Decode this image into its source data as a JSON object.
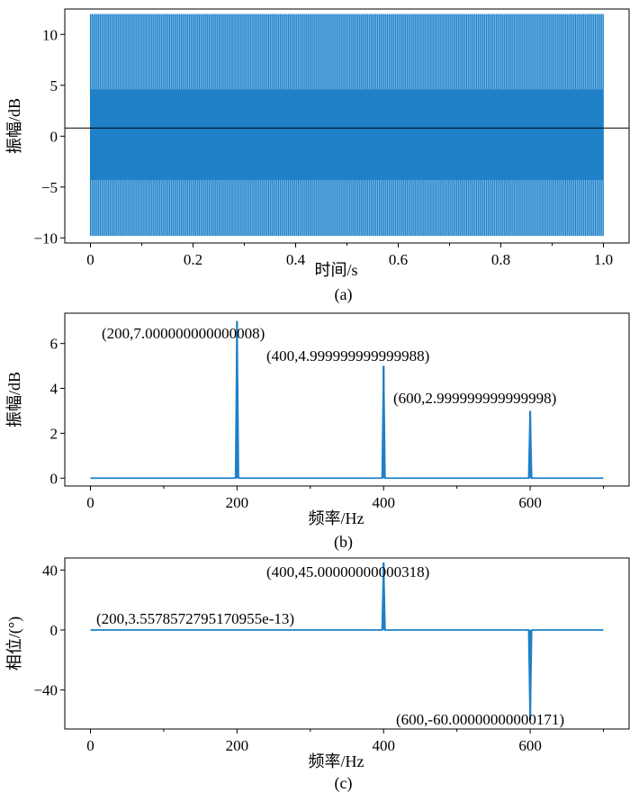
{
  "colors": {
    "series": "#1f80c8",
    "axis": "#000000",
    "background": "#ffffff"
  },
  "chart_data": [
    {
      "type": "area",
      "panel": "a",
      "caption": "(a)",
      "xlabel": "时间/s",
      "ylabel": "振幅/dB",
      "xlim": [
        -0.05,
        1.05
      ],
      "ylim": [
        -10.5,
        12.5
      ],
      "xticks": [
        0,
        0.2,
        0.4,
        0.6,
        0.8,
        1.0
      ],
      "xtick_labels": [
        "0",
        "0.2",
        "0.4",
        "0.6",
        "0.8",
        "1.0"
      ],
      "yticks": [
        -10,
        -5,
        0,
        5,
        10
      ],
      "ytick_labels": [
        "−10",
        "−5",
        "0",
        "5",
        "10"
      ],
      "signal": {
        "x_range": [
          0,
          1
        ],
        "outer_envelope": [
          -9.8,
          12.0
        ],
        "inner_band": [
          -4.3,
          4.6
        ]
      },
      "hline": 0.8
    },
    {
      "type": "line",
      "panel": "b",
      "caption": "(b)",
      "xlabel": "频率/Hz",
      "ylabel": "振幅/dB",
      "xlim": [
        -35,
        735
      ],
      "ylim": [
        -0.35,
        7.35
      ],
      "xticks": [
        0,
        200,
        400,
        600
      ],
      "xtick_labels": [
        "0",
        "200",
        "400",
        "600"
      ],
      "yticks": [
        0,
        2,
        4,
        6
      ],
      "ytick_labels": [
        "0",
        "2",
        "4",
        "6"
      ],
      "x": [
        0,
        198,
        200,
        202,
        398,
        400,
        402,
        598,
        600,
        602,
        700
      ],
      "y": [
        0,
        0,
        7.0,
        0,
        0,
        5.0,
        0,
        0,
        3.0,
        0,
        0
      ],
      "annotations": [
        {
          "x": 200,
          "y": 7.0,
          "text": "(200,7.000000000000008)"
        },
        {
          "x": 400,
          "y": 5.0,
          "text": "(400,4.999999999999988)"
        },
        {
          "x": 600,
          "y": 3.0,
          "text": "(600,2.999999999999998)"
        }
      ]
    },
    {
      "type": "line",
      "panel": "c",
      "caption": "(c)",
      "xlabel": "频率/Hz",
      "ylabel": "相位/(°)",
      "xlim": [
        -35,
        735
      ],
      "ylim": [
        -66,
        48
      ],
      "xticks": [
        0,
        200,
        400,
        600
      ],
      "xtick_labels": [
        "0",
        "200",
        "400",
        "600"
      ],
      "yticks": [
        -40,
        0,
        40
      ],
      "ytick_labels": [
        "−40",
        "0",
        "40"
      ],
      "x": [
        0,
        198,
        200,
        202,
        398,
        400,
        402,
        598,
        600,
        602,
        700
      ],
      "y": [
        0,
        0,
        0,
        0,
        0,
        45,
        0,
        0,
        -60,
        0,
        0
      ],
      "annotations": [
        {
          "x": 200,
          "y": 0,
          "text": "(200,3.5578572795170955e-13)"
        },
        {
          "x": 400,
          "y": 45,
          "text": "(400,45.00000000000318)"
        },
        {
          "x": 600,
          "y": -60,
          "text": "(600,-60.00000000000171)"
        }
      ]
    }
  ]
}
